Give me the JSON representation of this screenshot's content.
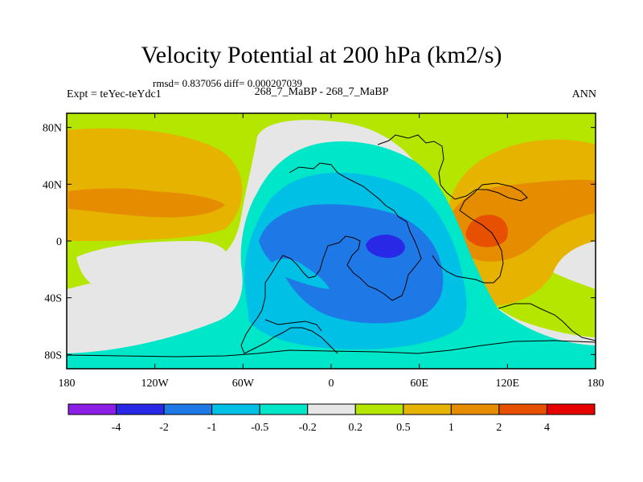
{
  "chart_data": {
    "type": "heatmap",
    "title": "Velocity Potential at 200 hPa (km2/s)",
    "stats": "rmsd= 0.837056 diff= 0.000207039",
    "subtitle": "268_7_MaBP - 268_7_MaBP",
    "left_label": "Expt = teYec-teYdc1",
    "right_label": "ANN",
    "x_range": [
      -180,
      180
    ],
    "y_range": [
      -90,
      90
    ],
    "x_ticks": [
      {
        "value": -180,
        "label": "180"
      },
      {
        "value": -120,
        "label": "120W"
      },
      {
        "value": -60,
        "label": "60W"
      },
      {
        "value": 0,
        "label": "0"
      },
      {
        "value": 60,
        "label": "60E"
      },
      {
        "value": 120,
        "label": "120E"
      },
      {
        "value": 180,
        "label": "180"
      }
    ],
    "y_ticks": [
      {
        "value": 80,
        "label": "80N"
      },
      {
        "value": 40,
        "label": "40N"
      },
      {
        "value": 0,
        "label": "0"
      },
      {
        "value": -40,
        "label": "40S"
      },
      {
        "value": -80,
        "label": "80S"
      }
    ],
    "colorbar": {
      "colors": [
        "#8c1ee6",
        "#2828e6",
        "#1e78e6",
        "#00c0e6",
        "#00e6c8",
        "#e6e6e6",
        "#b4e600",
        "#e6b400",
        "#e68c00",
        "#e65000",
        "#e60000"
      ],
      "labels": [
        "-4",
        "-2",
        "-1",
        "-0.5",
        "-0.2",
        "0.2",
        "0.5",
        "1",
        "2",
        "4"
      ]
    },
    "background_level": "0.2 to 0.5 (yellow-green)",
    "features": [
      {
        "name": "Negative center",
        "lon": 40,
        "lat": -5,
        "min_level": "-4 to -2"
      },
      {
        "name": "Positive center (Maritime)",
        "lon": 105,
        "lat": 5,
        "max_level": "2 to 4"
      },
      {
        "name": "Positive band (Pacific north)",
        "lon": -150,
        "lat": 25,
        "max_level": "1 to 2"
      }
    ]
  }
}
